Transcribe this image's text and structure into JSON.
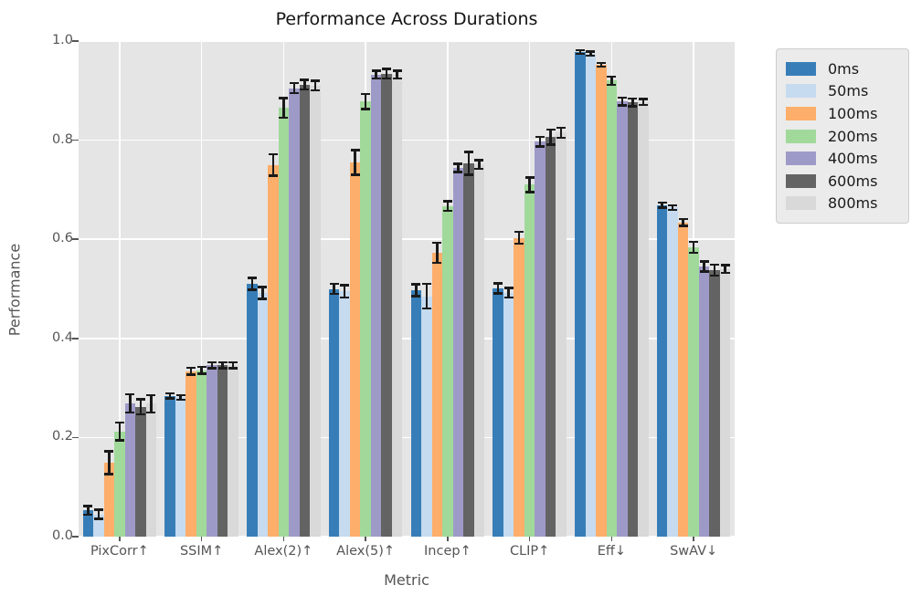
{
  "chart_data": {
    "type": "bar",
    "title": "Performance Across Durations",
    "xlabel": "Metric",
    "ylabel": "Performance",
    "ylim": [
      0.0,
      1.0
    ],
    "grid": "white gridlines on light-gray ggplot-style background, horizontal at y ticks and vertical at category centers",
    "legend_position": "outside upper right",
    "error_bars": "symmetric, black, with caps",
    "background_color": "#e5e5e5",
    "yticks": [
      {
        "label": "0.0",
        "value": 0.0
      },
      {
        "label": "0.2",
        "value": 0.2
      },
      {
        "label": "0.4",
        "value": 0.4
      },
      {
        "label": "0.6",
        "value": 0.6
      },
      {
        "label": "0.8",
        "value": 0.8
      },
      {
        "label": "1.0",
        "value": 1.0
      }
    ],
    "categories": [
      "PixCorr↑",
      "SSIM↑",
      "Alex(2)↑",
      "Alex(5)↑",
      "Incep↑",
      "CLIP↑",
      "Eff↓",
      "SwAV↓"
    ],
    "series": [
      {
        "name": "0ms",
        "color": "#377eb8",
        "values": [
          0.053,
          0.284,
          0.51,
          0.5,
          0.497,
          0.501,
          0.978,
          0.669
        ],
        "errors": [
          0.009,
          0.005,
          0.012,
          0.01,
          0.012,
          0.01,
          0.004,
          0.005
        ]
      },
      {
        "name": "50ms",
        "color": "#c6dbef",
        "values": [
          0.045,
          0.281,
          0.492,
          0.495,
          0.485,
          0.492,
          0.975,
          0.664
        ],
        "errors": [
          0.009,
          0.005,
          0.012,
          0.012,
          0.025,
          0.01,
          0.004,
          0.005
        ]
      },
      {
        "name": "100ms",
        "color": "#fdae6b",
        "values": [
          0.149,
          0.334,
          0.75,
          0.755,
          0.573,
          0.603,
          0.952,
          0.634
        ],
        "errors": [
          0.023,
          0.007,
          0.022,
          0.025,
          0.02,
          0.012,
          0.004,
          0.007
        ]
      },
      {
        "name": "200ms",
        "color": "#a1d99b",
        "values": [
          0.212,
          0.336,
          0.865,
          0.878,
          0.667,
          0.71,
          0.92,
          0.584
        ],
        "errors": [
          0.018,
          0.007,
          0.02,
          0.015,
          0.01,
          0.015,
          0.008,
          0.011
        ]
      },
      {
        "name": "400ms",
        "color": "#9e9ac8",
        "values": [
          0.269,
          0.346,
          0.905,
          0.932,
          0.744,
          0.797,
          0.878,
          0.545
        ],
        "errors": [
          0.018,
          0.006,
          0.01,
          0.008,
          0.008,
          0.01,
          0.008,
          0.01
        ]
      },
      {
        "name": "600ms",
        "color": "#636363",
        "values": [
          0.262,
          0.346,
          0.912,
          0.934,
          0.753,
          0.806,
          0.876,
          0.538
        ],
        "errors": [
          0.015,
          0.006,
          0.01,
          0.01,
          0.023,
          0.015,
          0.008,
          0.011
        ]
      },
      {
        "name": "800ms",
        "color": "#d9d9d9",
        "values": [
          0.268,
          0.346,
          0.91,
          0.932,
          0.751,
          0.815,
          0.877,
          0.54
        ],
        "errors": [
          0.017,
          0.006,
          0.01,
          0.008,
          0.009,
          0.01,
          0.006,
          0.008
        ]
      }
    ]
  }
}
